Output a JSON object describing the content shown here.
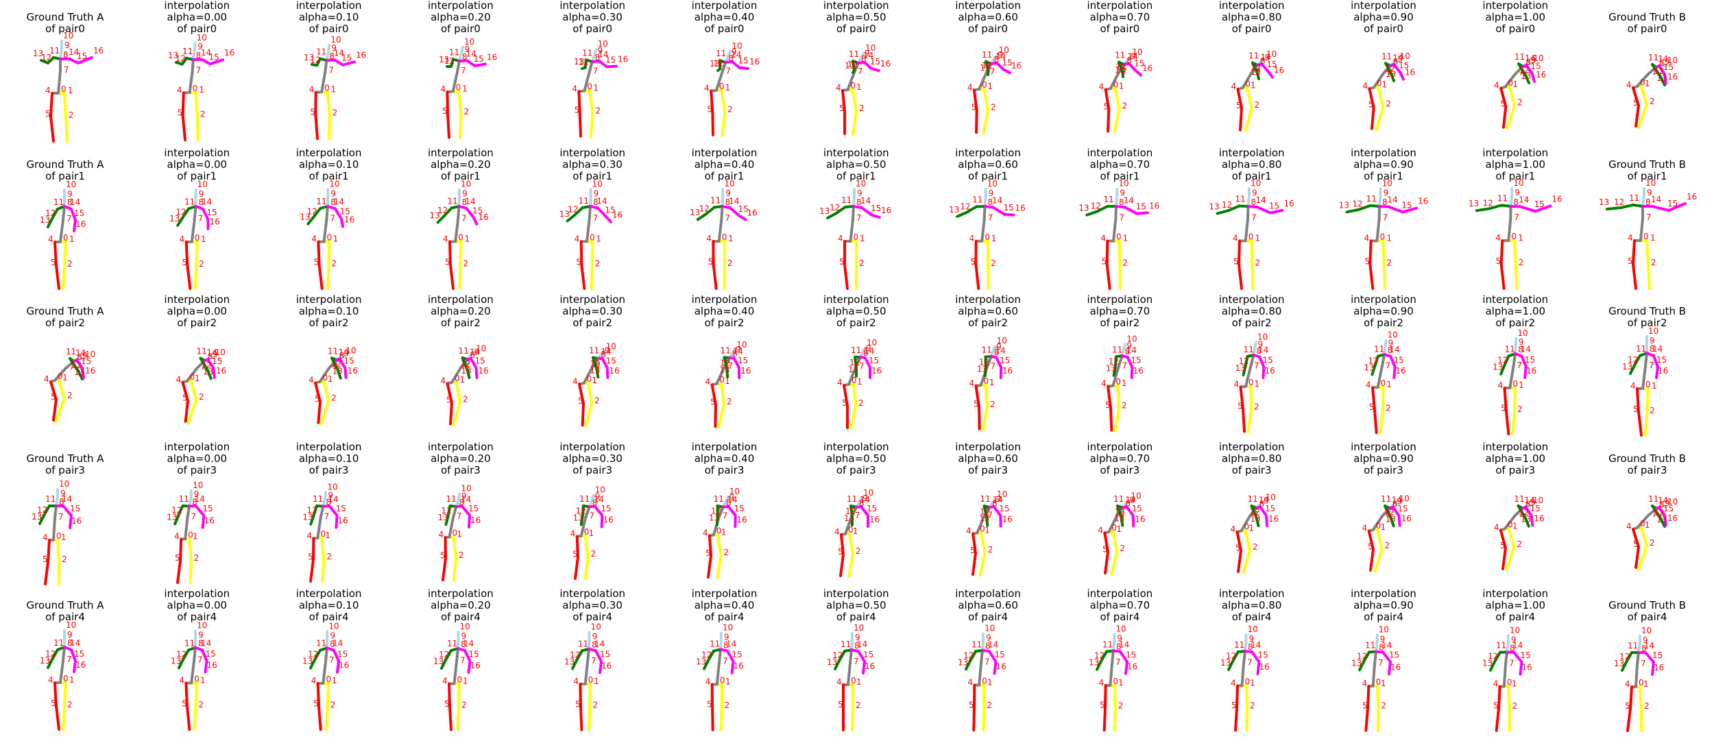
{
  "figure": {
    "rows": [
      {
        "pair": "pair0"
      },
      {
        "pair": "pair1"
      },
      {
        "pair": "pair2"
      },
      {
        "pair": "pair3"
      },
      {
        "pair": "pair4"
      }
    ],
    "columns": [
      {
        "line1": "Ground Truth A",
        "line2": ""
      },
      {
        "line1": "interpolation",
        "line2": "alpha=0.00"
      },
      {
        "line1": "interpolation",
        "line2": "alpha=0.10"
      },
      {
        "line1": "interpolation",
        "line2": "alpha=0.20"
      },
      {
        "line1": "interpolation",
        "line2": "alpha=0.30"
      },
      {
        "line1": "interpolation",
        "line2": "alpha=0.40"
      },
      {
        "line1": "interpolation",
        "line2": "alpha=0.50"
      },
      {
        "line1": "interpolation",
        "line2": "alpha=0.60"
      },
      {
        "line1": "interpolation",
        "line2": "alpha=0.70"
      },
      {
        "line1": "interpolation",
        "line2": "alpha=0.80"
      },
      {
        "line1": "interpolation",
        "line2": "alpha=0.90"
      },
      {
        "line1": "interpolation",
        "line2": "alpha=1.00"
      },
      {
        "line1": "Ground Truth B",
        "line2": ""
      }
    ],
    "of_prefix": "of",
    "joint_labels": [
      "0",
      "1",
      "2",
      "4",
      "5",
      "7",
      "8",
      "9",
      "10",
      "11",
      "12",
      "13",
      "14",
      "15",
      "16"
    ],
    "bone_colors": {
      "right_leg": "#ff0000",
      "left_leg": "#ffff00",
      "spine": "#808080",
      "head": "#add8e6",
      "left_arm": "#008000",
      "right_arm": "#ff00ff",
      "label": "#ff0000"
    }
  }
}
